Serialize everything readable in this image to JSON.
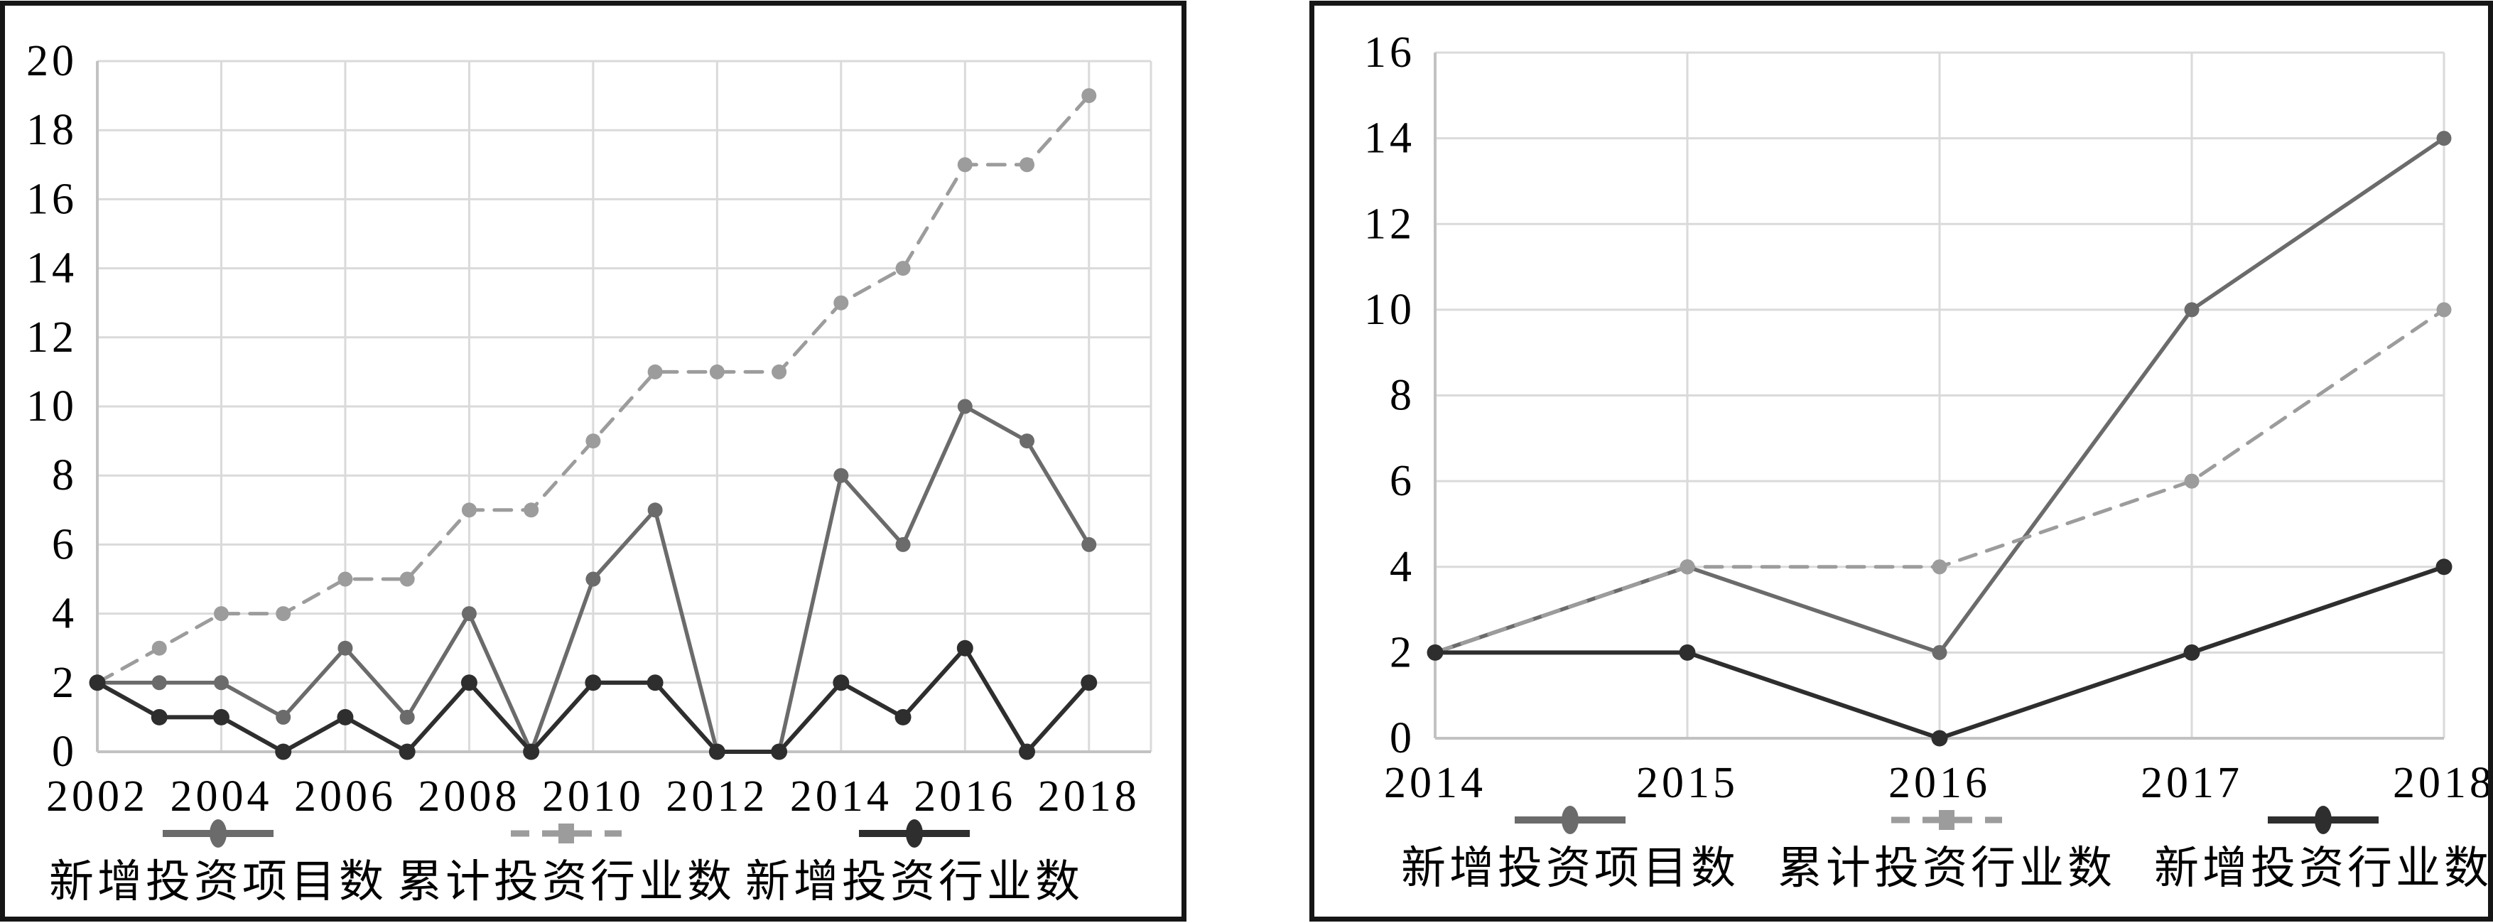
{
  "figure": {
    "background": "#ffffff",
    "panel_border_color": "#161616",
    "gridline_color": "#dadada",
    "axis_line_color": "#c2c2c2",
    "text_color": "#000000"
  },
  "chart_data": [
    {
      "id": "left-chart",
      "type": "line",
      "title": "",
      "xlabel": "",
      "ylabel": "",
      "categories": [
        "2002",
        "2003",
        "2004",
        "2005",
        "2006",
        "2007",
        "2008",
        "2009",
        "2010",
        "2011",
        "2012",
        "2013",
        "2014",
        "2015",
        "2016",
        "2017",
        "2018"
      ],
      "x_label_every": 2,
      "x_grid_every": 2,
      "x_padding_slots": 1,
      "ylim": [
        0,
        20
      ],
      "ytick_step": 2,
      "grid": true,
      "legend_position": "bottom",
      "series": [
        {
          "key": "new-projects",
          "name": "新增投资项目数",
          "style": "solid",
          "marker": "circle",
          "color": "#6b6b6b",
          "values": [
            2,
            2,
            2,
            1,
            3,
            1,
            4,
            0,
            5,
            7,
            0,
            0,
            8,
            6,
            10,
            9,
            6
          ]
        },
        {
          "key": "cumulative-industries",
          "name": "累计投资行业数",
          "style": "dashed",
          "marker": "circle",
          "color": "#9c9c9c",
          "values": [
            2,
            3,
            4,
            4,
            5,
            5,
            7,
            7,
            9,
            11,
            11,
            11,
            13,
            14,
            17,
            17,
            19
          ]
        },
        {
          "key": "new-industries",
          "name": "新增投资行业数",
          "style": "solid",
          "marker": "circle",
          "color": "#2e2e2e",
          "values": [
            2,
            1,
            1,
            0,
            1,
            0,
            2,
            0,
            2,
            2,
            0,
            0,
            2,
            1,
            3,
            0,
            2
          ]
        }
      ]
    },
    {
      "id": "right-chart",
      "type": "line",
      "title": "",
      "xlabel": "",
      "ylabel": "",
      "categories": [
        "2014",
        "2015",
        "2016",
        "2017",
        "2018"
      ],
      "x_label_every": 1,
      "x_grid_every": 1,
      "x_padding_slots": 0,
      "ylim": [
        0,
        16
      ],
      "ytick_step": 2,
      "grid": true,
      "legend_position": "bottom",
      "series": [
        {
          "key": "new-projects",
          "name": "新增投资项目数",
          "style": "solid",
          "marker": "circle",
          "color": "#6b6b6b",
          "values": [
            2,
            4,
            2,
            10,
            14
          ]
        },
        {
          "key": "cumulative-industries",
          "name": "累计投资行业数",
          "style": "dashed",
          "marker": "circle",
          "color": "#9c9c9c",
          "values": [
            2,
            4,
            4,
            6,
            10
          ]
        },
        {
          "key": "new-industries",
          "name": "新增投资行业数",
          "style": "solid",
          "marker": "circle",
          "color": "#2e2e2e",
          "values": [
            2,
            2,
            0,
            2,
            4
          ]
        }
      ]
    }
  ]
}
